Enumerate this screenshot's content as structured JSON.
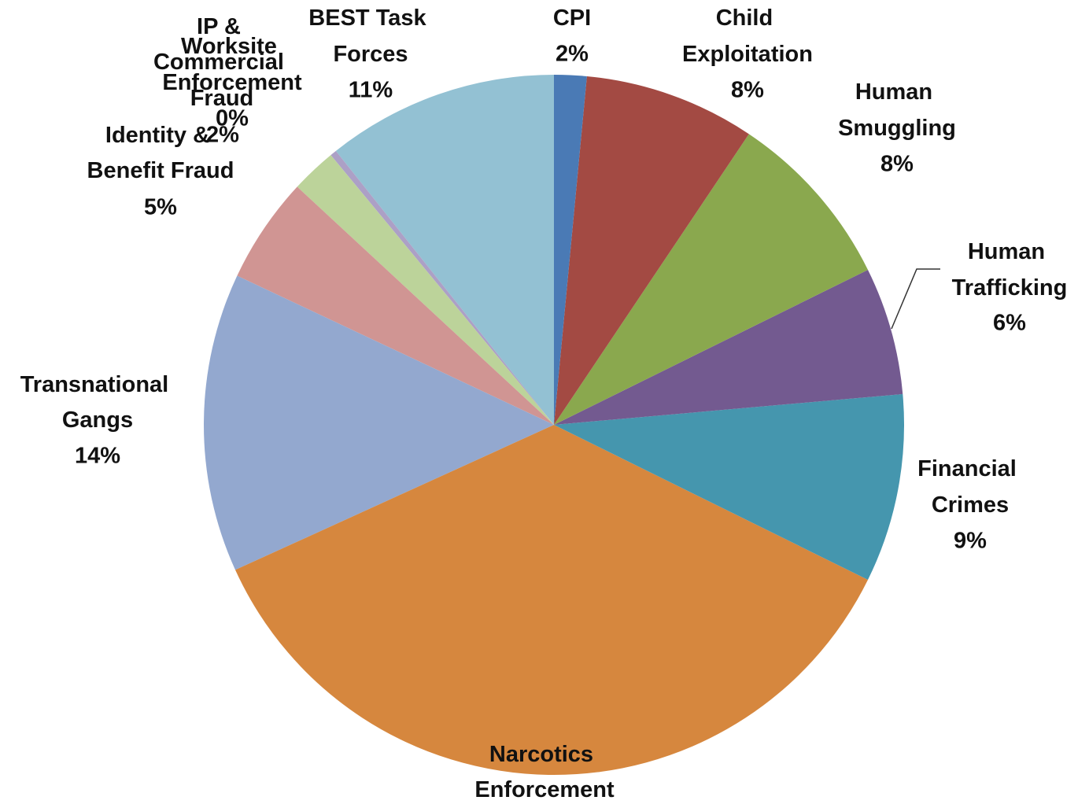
{
  "chart_data": {
    "type": "pie",
    "categories": [
      "CPI",
      "Child Exploitation",
      "Human Smuggling",
      "Human Trafficking",
      "Financial Crimes",
      "Narcotics Enforcement",
      "Transnational Gangs",
      "Identity & Benefit Fraud",
      "Worksite Enforcement",
      "IP & Commercial Fraud",
      "BEST Task Forces"
    ],
    "values": [
      1.5,
      7.9,
      8.3,
      5.9,
      8.7,
      35.9,
      13.8,
      4.9,
      2.1,
      0.3,
      10.7
    ],
    "value_labels": [
      "2%",
      "8%",
      "8%",
      "6%",
      "9%",
      null,
      "14%",
      "5%",
      "2%",
      "0%",
      "11%"
    ],
    "colors": [
      "#4a7ab5",
      "#a34a43",
      "#8aa84e",
      "#735a90",
      "#4596ae",
      "#d6873e",
      "#93a8cf",
      "#d09593",
      "#bcd39a",
      "#aca0c6",
      "#93c1d3"
    ]
  }
}
